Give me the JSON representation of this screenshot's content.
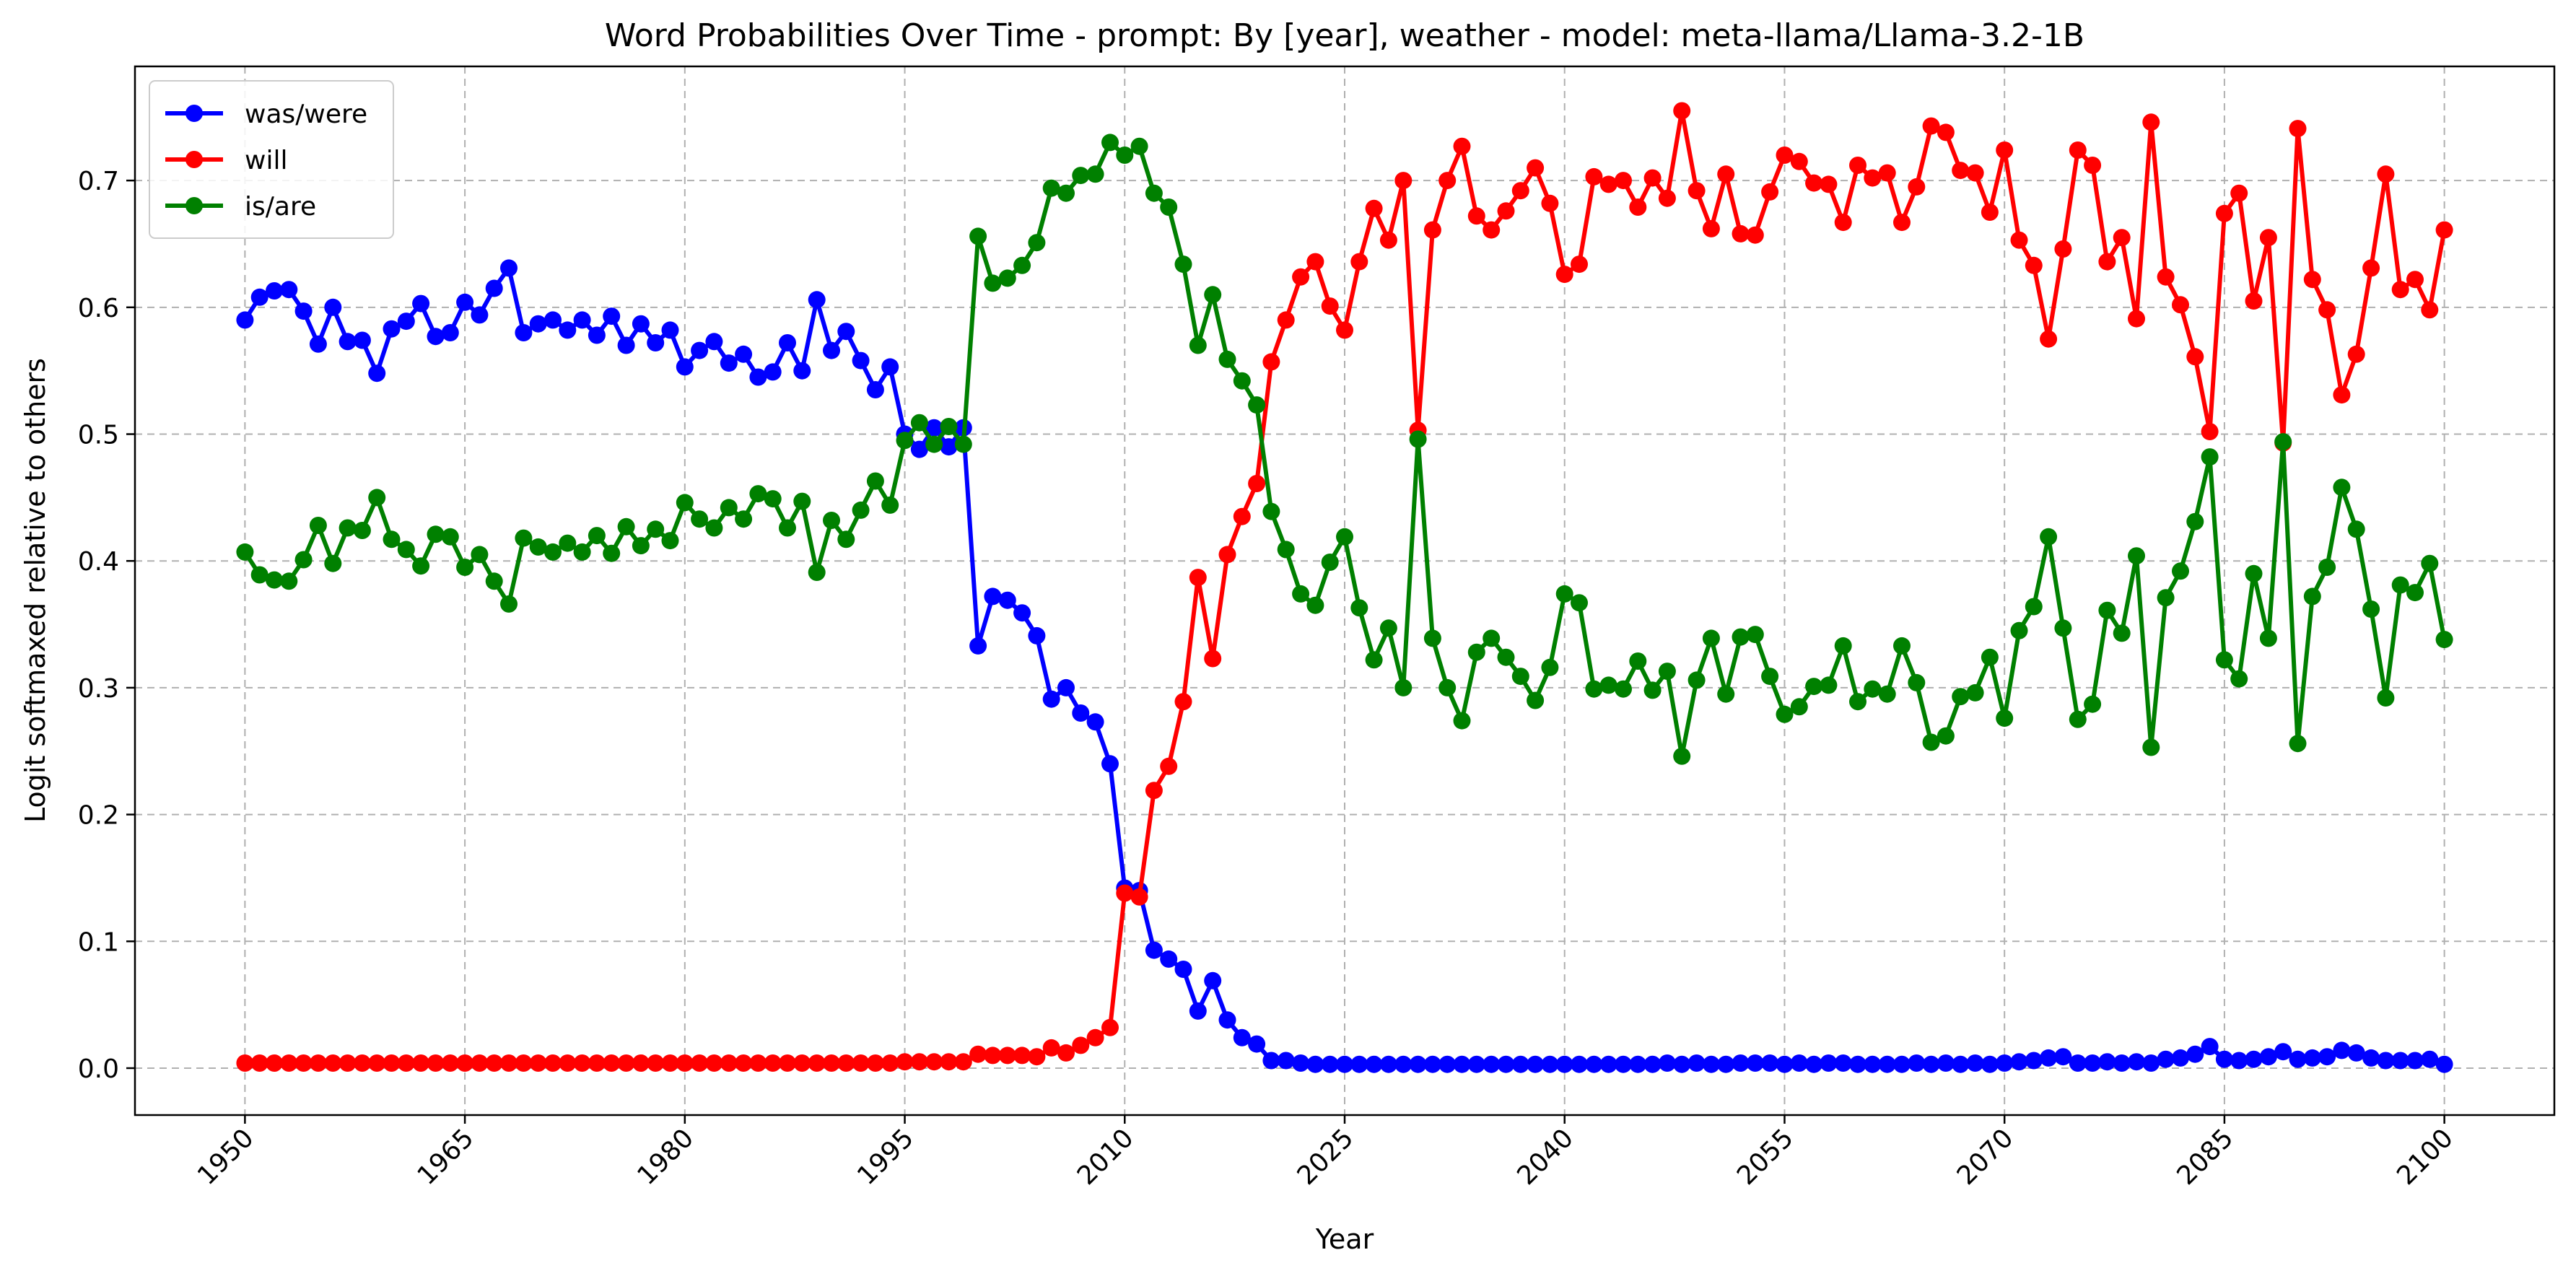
{
  "chart_data": {
    "type": "line",
    "title": "Word Probabilities Over Time - prompt: By [year], weather - model: meta-llama/Llama-3.2-1B",
    "xlabel": "Year",
    "ylabel": "Logit softmaxed relative to others",
    "xlim": [
      1942.5,
      2107.5
    ],
    "ylim": [
      -0.037,
      0.79
    ],
    "xticks": [
      1950,
      1965,
      1980,
      1995,
      2010,
      2025,
      2040,
      2055,
      2070,
      2085,
      2100
    ],
    "yticks": [
      0.0,
      0.1,
      0.2,
      0.3,
      0.4,
      0.5,
      0.6,
      0.7
    ],
    "grid": true,
    "legend_position": "top-left",
    "markers": true,
    "x": [
      1950,
      1951,
      1952,
      1953,
      1954,
      1955,
      1956,
      1957,
      1958,
      1959,
      1960,
      1961,
      1962,
      1963,
      1964,
      1965,
      1966,
      1967,
      1968,
      1969,
      1970,
      1971,
      1972,
      1973,
      1974,
      1975,
      1976,
      1977,
      1978,
      1979,
      1980,
      1981,
      1982,
      1983,
      1984,
      1985,
      1986,
      1987,
      1988,
      1989,
      1990,
      1991,
      1992,
      1993,
      1994,
      1995,
      1996,
      1997,
      1998,
      1999,
      2000,
      2001,
      2002,
      2003,
      2004,
      2005,
      2006,
      2007,
      2008,
      2009,
      2010,
      2011,
      2012,
      2013,
      2014,
      2015,
      2016,
      2017,
      2018,
      2019,
      2020,
      2021,
      2022,
      2023,
      2024,
      2025,
      2026,
      2027,
      2028,
      2029,
      2030,
      2031,
      2032,
      2033,
      2034,
      2035,
      2036,
      2037,
      2038,
      2039,
      2040,
      2041,
      2042,
      2043,
      2044,
      2045,
      2046,
      2047,
      2048,
      2049,
      2050,
      2051,
      2052,
      2053,
      2054,
      2055,
      2056,
      2057,
      2058,
      2059,
      2060,
      2061,
      2062,
      2063,
      2064,
      2065,
      2066,
      2067,
      2068,
      2069,
      2070,
      2071,
      2072,
      2073,
      2074,
      2075,
      2076,
      2077,
      2078,
      2079,
      2080,
      2081,
      2082,
      2083,
      2084,
      2085,
      2086,
      2087,
      2088,
      2089,
      2090,
      2091,
      2092,
      2093,
      2094,
      2095,
      2096,
      2097,
      2098,
      2099,
      2100
    ],
    "series": [
      {
        "name": "was/were",
        "color": "#0000ff",
        "values": [
          0.59,
          0.608,
          0.613,
          0.614,
          0.597,
          0.571,
          0.6,
          0.573,
          0.574,
          0.548,
          0.583,
          0.589,
          0.603,
          0.577,
          0.58,
          0.604,
          0.594,
          0.615,
          0.631,
          0.58,
          0.587,
          0.59,
          0.582,
          0.59,
          0.578,
          0.593,
          0.57,
          0.587,
          0.572,
          0.582,
          0.553,
          0.566,
          0.573,
          0.556,
          0.563,
          0.545,
          0.549,
          0.572,
          0.55,
          0.606,
          0.566,
          0.581,
          0.558,
          0.535,
          0.553,
          0.5,
          0.488,
          0.505,
          0.49,
          0.505,
          0.333,
          0.372,
          0.369,
          0.359,
          0.341,
          0.291,
          0.3,
          0.28,
          0.273,
          0.24,
          0.142,
          0.14,
          0.093,
          0.086,
          0.078,
          0.045,
          0.069,
          0.038,
          0.024,
          0.019,
          0.006,
          0.006,
          0.004,
          0.003,
          0.003,
          0.003,
          0.003,
          0.003,
          0.003,
          0.003,
          0.003,
          0.003,
          0.003,
          0.003,
          0.003,
          0.003,
          0.003,
          0.003,
          0.003,
          0.003,
          0.003,
          0.003,
          0.003,
          0.003,
          0.003,
          0.003,
          0.003,
          0.004,
          0.003,
          0.004,
          0.003,
          0.003,
          0.004,
          0.004,
          0.004,
          0.003,
          0.004,
          0.003,
          0.004,
          0.004,
          0.003,
          0.003,
          0.003,
          0.003,
          0.004,
          0.003,
          0.004,
          0.003,
          0.004,
          0.003,
          0.004,
          0.005,
          0.006,
          0.008,
          0.009,
          0.004,
          0.004,
          0.005,
          0.004,
          0.005,
          0.004,
          0.007,
          0.008,
          0.011,
          0.017,
          0.007,
          0.006,
          0.007,
          0.009,
          0.013,
          0.007,
          0.008,
          0.009,
          0.014,
          0.012,
          0.008,
          0.006,
          0.006,
          0.006,
          0.007,
          0.003
        ]
      },
      {
        "name": "will",
        "color": "#ff0000",
        "values": [
          0.004,
          0.004,
          0.004,
          0.004,
          0.004,
          0.004,
          0.004,
          0.004,
          0.004,
          0.004,
          0.004,
          0.004,
          0.004,
          0.004,
          0.004,
          0.004,
          0.004,
          0.004,
          0.004,
          0.004,
          0.004,
          0.004,
          0.004,
          0.004,
          0.004,
          0.004,
          0.004,
          0.004,
          0.004,
          0.004,
          0.004,
          0.004,
          0.004,
          0.004,
          0.004,
          0.004,
          0.004,
          0.004,
          0.004,
          0.004,
          0.004,
          0.004,
          0.004,
          0.004,
          0.004,
          0.005,
          0.005,
          0.005,
          0.005,
          0.005,
          0.011,
          0.01,
          0.01,
          0.01,
          0.009,
          0.016,
          0.012,
          0.018,
          0.024,
          0.032,
          0.138,
          0.135,
          0.219,
          0.238,
          0.289,
          0.387,
          0.323,
          0.405,
          0.435,
          0.461,
          0.557,
          0.59,
          0.624,
          0.636,
          0.601,
          0.582,
          0.636,
          0.678,
          0.653,
          0.7,
          0.503,
          0.661,
          0.7,
          0.727,
          0.672,
          0.661,
          0.676,
          0.692,
          0.71,
          0.682,
          0.626,
          0.634,
          0.703,
          0.697,
          0.7,
          0.679,
          0.702,
          0.686,
          0.755,
          0.692,
          0.662,
          0.705,
          0.658,
          0.657,
          0.691,
          0.72,
          0.715,
          0.698,
          0.697,
          0.667,
          0.712,
          0.702,
          0.706,
          0.667,
          0.695,
          0.743,
          0.738,
          0.708,
          0.706,
          0.675,
          0.724,
          0.653,
          0.633,
          0.575,
          0.646,
          0.724,
          0.712,
          0.636,
          0.655,
          0.591,
          0.746,
          0.624,
          0.602,
          0.561,
          0.502,
          0.674,
          0.69,
          0.605,
          0.655,
          0.493,
          0.741,
          0.622,
          0.598,
          0.531,
          0.563,
          0.631,
          0.705,
          0.614,
          0.622,
          0.598,
          0.661
        ]
      },
      {
        "name": "is/are",
        "color": "#008000",
        "values": [
          0.407,
          0.389,
          0.385,
          0.384,
          0.401,
          0.428,
          0.398,
          0.426,
          0.424,
          0.45,
          0.417,
          0.409,
          0.396,
          0.421,
          0.419,
          0.395,
          0.405,
          0.384,
          0.366,
          0.418,
          0.411,
          0.407,
          0.414,
          0.407,
          0.42,
          0.406,
          0.427,
          0.412,
          0.425,
          0.416,
          0.446,
          0.433,
          0.426,
          0.442,
          0.433,
          0.453,
          0.449,
          0.426,
          0.447,
          0.391,
          0.432,
          0.417,
          0.44,
          0.463,
          0.444,
          0.495,
          0.509,
          0.492,
          0.506,
          0.492,
          0.656,
          0.619,
          0.623,
          0.633,
          0.651,
          0.694,
          0.69,
          0.704,
          0.705,
          0.73,
          0.72,
          0.727,
          0.69,
          0.679,
          0.634,
          0.57,
          0.61,
          0.559,
          0.542,
          0.523,
          0.439,
          0.409,
          0.374,
          0.365,
          0.399,
          0.419,
          0.363,
          0.322,
          0.347,
          0.3,
          0.496,
          0.339,
          0.3,
          0.274,
          0.328,
          0.339,
          0.324,
          0.309,
          0.29,
          0.316,
          0.374,
          0.367,
          0.299,
          0.302,
          0.299,
          0.321,
          0.298,
          0.313,
          0.246,
          0.306,
          0.339,
          0.295,
          0.34,
          0.342,
          0.309,
          0.279,
          0.285,
          0.301,
          0.302,
          0.333,
          0.289,
          0.299,
          0.295,
          0.333,
          0.304,
          0.257,
          0.262,
          0.293,
          0.296,
          0.324,
          0.276,
          0.345,
          0.364,
          0.419,
          0.347,
          0.275,
          0.287,
          0.361,
          0.343,
          0.404,
          0.253,
          0.371,
          0.392,
          0.431,
          0.482,
          0.322,
          0.307,
          0.39,
          0.339,
          0.494,
          0.256,
          0.372,
          0.395,
          0.458,
          0.425,
          0.362,
          0.292,
          0.381,
          0.375,
          0.398,
          0.338
        ]
      }
    ]
  }
}
